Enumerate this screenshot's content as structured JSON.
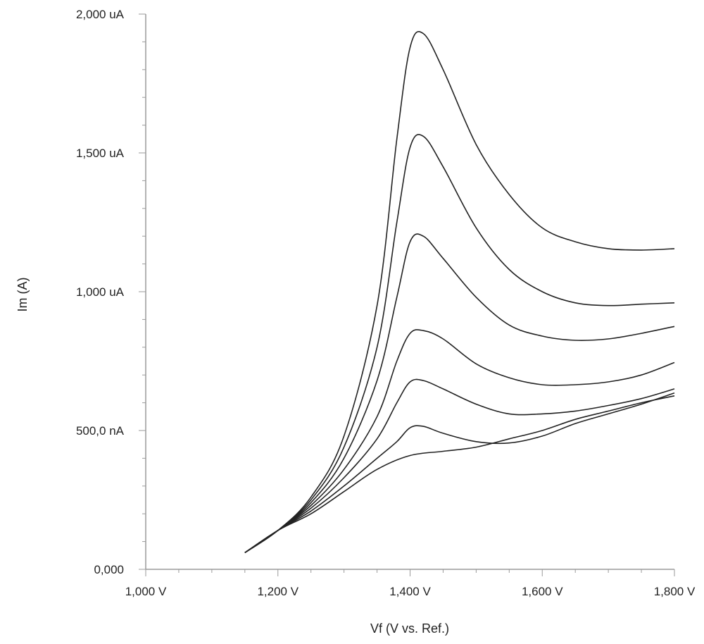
{
  "chart_data": {
    "type": "line",
    "title": "",
    "xlabel": "Vf (V vs. Ref.)",
    "ylabel": "Im (A)",
    "xlim": [
      1.0,
      1.8
    ],
    "ylim": [
      0,
      2000
    ],
    "x_ticks": [
      {
        "value": 1.0,
        "label": "1,000 V"
      },
      {
        "value": 1.2,
        "label": "1,200 V"
      },
      {
        "value": 1.4,
        "label": "1,400 V"
      },
      {
        "value": 1.6,
        "label": "1,600 V"
      },
      {
        "value": 1.8,
        "label": "1,800 V"
      }
    ],
    "y_ticks": [
      {
        "value": 0,
        "label": "0,000"
      },
      {
        "value": 500,
        "label": "500,0 nA"
      },
      {
        "value": 1000,
        "label": "1,000 uA"
      },
      {
        "value": 1500,
        "label": "1,500 uA"
      },
      {
        "value": 2000,
        "label": "2,000 uA"
      }
    ],
    "y_unit_note": "values in nA",
    "grid": false,
    "line_color": "#222222",
    "series": [
      {
        "points": [
          [
            1.15,
            60
          ],
          [
            1.2,
            140
          ],
          [
            1.25,
            200
          ],
          [
            1.3,
            280
          ],
          [
            1.35,
            360
          ],
          [
            1.4,
            410
          ],
          [
            1.45,
            425
          ],
          [
            1.5,
            440
          ],
          [
            1.55,
            470
          ],
          [
            1.6,
            500
          ],
          [
            1.65,
            540
          ],
          [
            1.7,
            570
          ],
          [
            1.75,
            600
          ],
          [
            1.8,
            625
          ]
        ]
      },
      {
        "points": [
          [
            1.15,
            60
          ],
          [
            1.2,
            140
          ],
          [
            1.25,
            210
          ],
          [
            1.3,
            300
          ],
          [
            1.35,
            400
          ],
          [
            1.38,
            460
          ],
          [
            1.4,
            510
          ],
          [
            1.42,
            515
          ],
          [
            1.45,
            490
          ],
          [
            1.5,
            460
          ],
          [
            1.55,
            455
          ],
          [
            1.6,
            480
          ],
          [
            1.65,
            525
          ],
          [
            1.7,
            560
          ],
          [
            1.75,
            595
          ],
          [
            1.8,
            635
          ]
        ]
      },
      {
        "points": [
          [
            1.15,
            60
          ],
          [
            1.2,
            140
          ],
          [
            1.25,
            220
          ],
          [
            1.3,
            330
          ],
          [
            1.35,
            470
          ],
          [
            1.38,
            600
          ],
          [
            1.4,
            675
          ],
          [
            1.42,
            680
          ],
          [
            1.45,
            650
          ],
          [
            1.5,
            595
          ],
          [
            1.55,
            560
          ],
          [
            1.6,
            560
          ],
          [
            1.65,
            570
          ],
          [
            1.7,
            590
          ],
          [
            1.75,
            615
          ],
          [
            1.8,
            650
          ]
        ]
      },
      {
        "points": [
          [
            1.15,
            60
          ],
          [
            1.2,
            140
          ],
          [
            1.25,
            230
          ],
          [
            1.3,
            360
          ],
          [
            1.35,
            550
          ],
          [
            1.38,
            750
          ],
          [
            1.4,
            850
          ],
          [
            1.42,
            860
          ],
          [
            1.45,
            830
          ],
          [
            1.5,
            740
          ],
          [
            1.55,
            690
          ],
          [
            1.6,
            665
          ],
          [
            1.65,
            665
          ],
          [
            1.7,
            675
          ],
          [
            1.75,
            700
          ],
          [
            1.8,
            745
          ]
        ]
      },
      {
        "points": [
          [
            1.15,
            60
          ],
          [
            1.2,
            140
          ],
          [
            1.25,
            240
          ],
          [
            1.3,
            400
          ],
          [
            1.35,
            680
          ],
          [
            1.38,
            980
          ],
          [
            1.4,
            1180
          ],
          [
            1.42,
            1200
          ],
          [
            1.45,
            1120
          ],
          [
            1.5,
            980
          ],
          [
            1.55,
            880
          ],
          [
            1.6,
            840
          ],
          [
            1.65,
            825
          ],
          [
            1.7,
            830
          ],
          [
            1.75,
            850
          ],
          [
            1.8,
            875
          ]
        ]
      },
      {
        "points": [
          [
            1.15,
            60
          ],
          [
            1.2,
            140
          ],
          [
            1.25,
            250
          ],
          [
            1.3,
            440
          ],
          [
            1.35,
            800
          ],
          [
            1.38,
            1250
          ],
          [
            1.4,
            1520
          ],
          [
            1.42,
            1560
          ],
          [
            1.45,
            1450
          ],
          [
            1.5,
            1230
          ],
          [
            1.55,
            1080
          ],
          [
            1.6,
            1000
          ],
          [
            1.65,
            960
          ],
          [
            1.7,
            950
          ],
          [
            1.75,
            955
          ],
          [
            1.8,
            960
          ]
        ]
      },
      {
        "points": [
          [
            1.15,
            60
          ],
          [
            1.2,
            140
          ],
          [
            1.25,
            260
          ],
          [
            1.3,
            480
          ],
          [
            1.35,
            950
          ],
          [
            1.38,
            1550
          ],
          [
            1.4,
            1880
          ],
          [
            1.42,
            1930
          ],
          [
            1.45,
            1800
          ],
          [
            1.5,
            1530
          ],
          [
            1.55,
            1350
          ],
          [
            1.6,
            1230
          ],
          [
            1.65,
            1180
          ],
          [
            1.7,
            1155
          ],
          [
            1.75,
            1150
          ],
          [
            1.8,
            1155
          ]
        ]
      }
    ]
  }
}
